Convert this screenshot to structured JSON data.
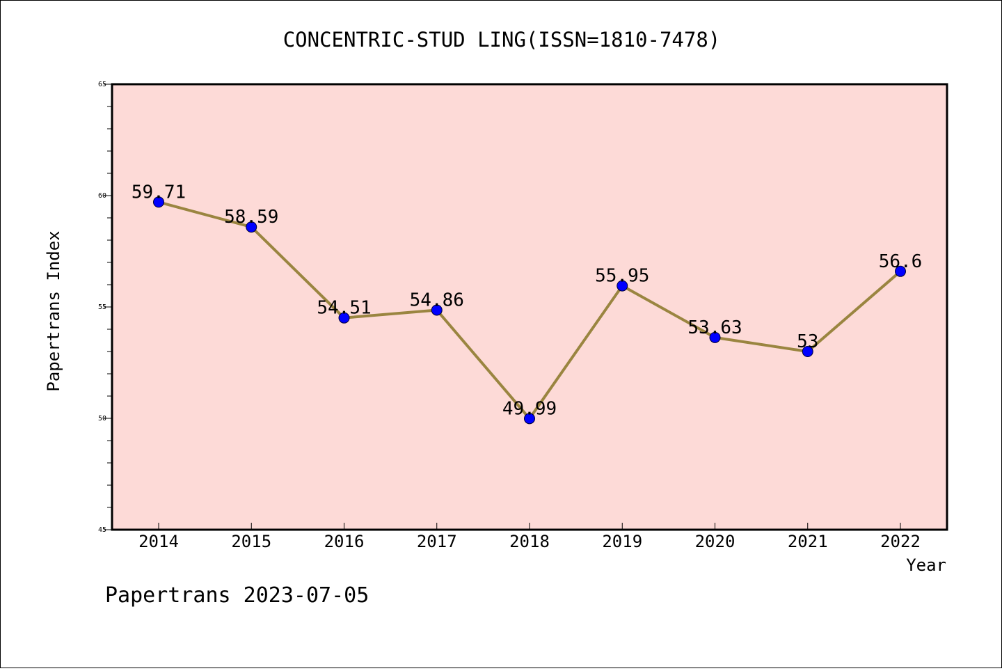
{
  "chart_data": {
    "type": "line",
    "title": "CONCENTRIC-STUD LING(ISSN=1810-7478)",
    "xlabel": "Year",
    "ylabel": "Papertrans Index",
    "x": [
      "2014",
      "2015",
      "2016",
      "2017",
      "2018",
      "2019",
      "2020",
      "2021",
      "2022"
    ],
    "series": [
      {
        "values": [
          59.71,
          58.59,
          54.51,
          54.86,
          49.99,
          55.95,
          53.63,
          53,
          56.6
        ],
        "labels": [
          "59.71",
          "58.59",
          "54.51",
          "54.86",
          "49.99",
          "55.95",
          "53.63",
          "53",
          "56.6"
        ]
      }
    ],
    "ylim": [
      45,
      65
    ],
    "yticks": [
      "45",
      "50",
      "55",
      "60",
      "65"
    ],
    "grid": false,
    "colors": {
      "plot_background": "#fddad7",
      "line": "#9a8540",
      "marker": "#0000ff"
    }
  },
  "footer": {
    "text": "Papertrans 2023-07-05"
  }
}
